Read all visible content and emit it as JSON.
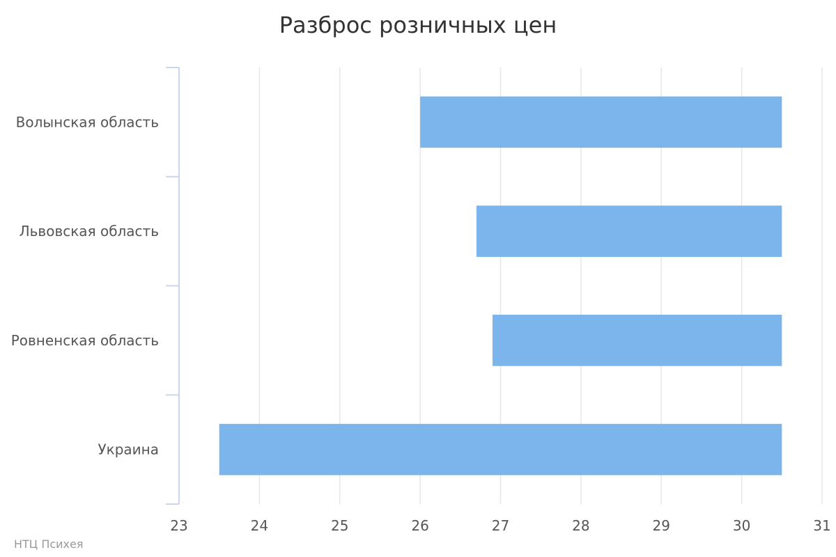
{
  "chart_data": {
    "type": "bar",
    "orientation": "horizontal",
    "title": "Разброс розничных цен",
    "xlabel": "",
    "ylabel": "",
    "categories": [
      "Волынская область",
      "Львовская область",
      "Ровненская область",
      "Украина"
    ],
    "series": [
      {
        "ranges": [
          [
            26.0,
            30.5
          ],
          [
            26.7,
            30.5
          ],
          [
            26.9,
            30.5
          ],
          [
            23.5,
            30.5
          ]
        ]
      }
    ],
    "xlim": [
      23,
      31
    ],
    "xticks": [
      23,
      24,
      25,
      26,
      27,
      28,
      29,
      30,
      31
    ],
    "grid": true,
    "bar_color": "#7cb5ec",
    "grid_color": "#e6e6e6",
    "axis_color": "#ccd6eb"
  },
  "credit": "НТЦ Психея"
}
